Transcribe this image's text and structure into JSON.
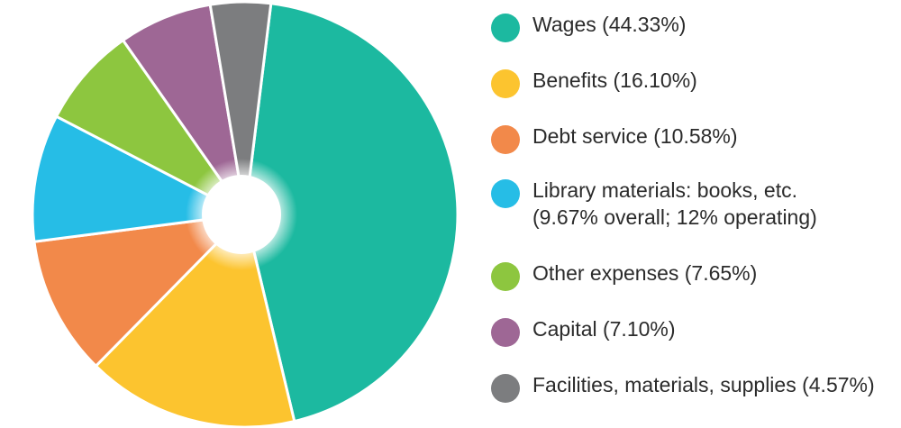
{
  "chart_data": {
    "type": "pie",
    "title": "",
    "legend_position": "right",
    "donut_hole": true,
    "slices": [
      {
        "label": "Wages (44.33%)",
        "value": 44.33,
        "color": "#1cb9a0",
        "legend_lines": [
          "Wages (44.33%)"
        ]
      },
      {
        "label": "Benefits (16.10%)",
        "value": 16.1,
        "color": "#fcc42f",
        "legend_lines": [
          "Benefits (16.10%)"
        ]
      },
      {
        "label": "Debt service (10.58%)",
        "value": 10.58,
        "color": "#f2894a",
        "legend_lines": [
          "Debt service (10.58%)"
        ]
      },
      {
        "label": "Library materials: books, etc. (9.67% overall; 12% operating)",
        "value": 9.67,
        "color": "#26bde6",
        "legend_lines": [
          "Library materials: books, etc.",
          "(9.67% overall; 12% operating)"
        ]
      },
      {
        "label": "Other expenses (7.65%)",
        "value": 7.65,
        "color": "#8dc63f",
        "legend_lines": [
          "Other expenses (7.65%)"
        ]
      },
      {
        "label": "Capital (7.10%)",
        "value": 7.1,
        "color": "#9e6795",
        "legend_lines": [
          "Capital (7.10%)"
        ]
      },
      {
        "label": "Facilities, materials, supplies (4.57%)",
        "value": 4.57,
        "color": "#7c7d7f",
        "legend_lines": [
          "Facilities, materials, supplies (4.57%)"
        ]
      }
    ]
  }
}
